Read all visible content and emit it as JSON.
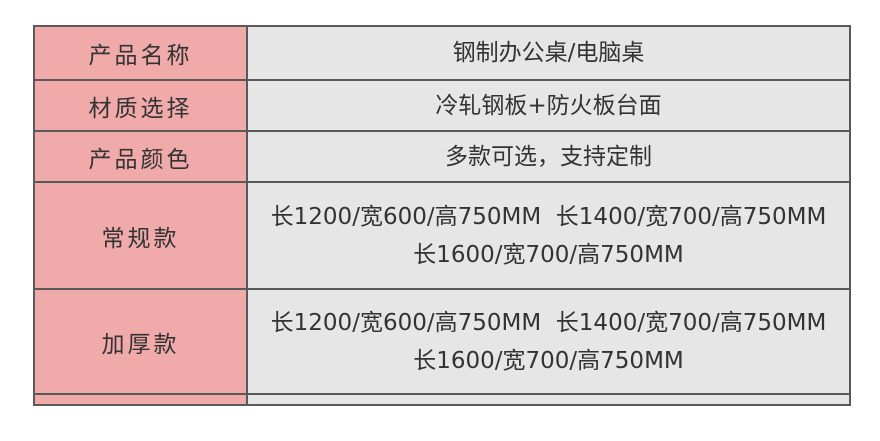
{
  "rows": [
    {
      "label": "产品名称",
      "lines": [
        "钢制办公桌/电脑桌"
      ]
    },
    {
      "label": "材质选择",
      "lines": [
        "冷轧钢板+防火板台面"
      ]
    },
    {
      "label": "产品颜色",
      "lines": [
        "多款可选，支持定制"
      ]
    },
    {
      "label": "常规款",
      "lines": [
        "长1200/宽600/高750MM  长1400/宽700/高750MM",
        "长1600/宽700/高750MM"
      ]
    },
    {
      "label": "加厚款",
      "lines": [
        "长1200/宽600/高750MM  长1400/宽700/高750MM",
        "长1600/宽700/高750MM"
      ]
    },
    {
      "label": "",
      "lines": []
    }
  ],
  "colors": {
    "label_bg": "#f0aaaa",
    "value_bg": "#e6e6e6",
    "border": "#5a5a5a"
  }
}
